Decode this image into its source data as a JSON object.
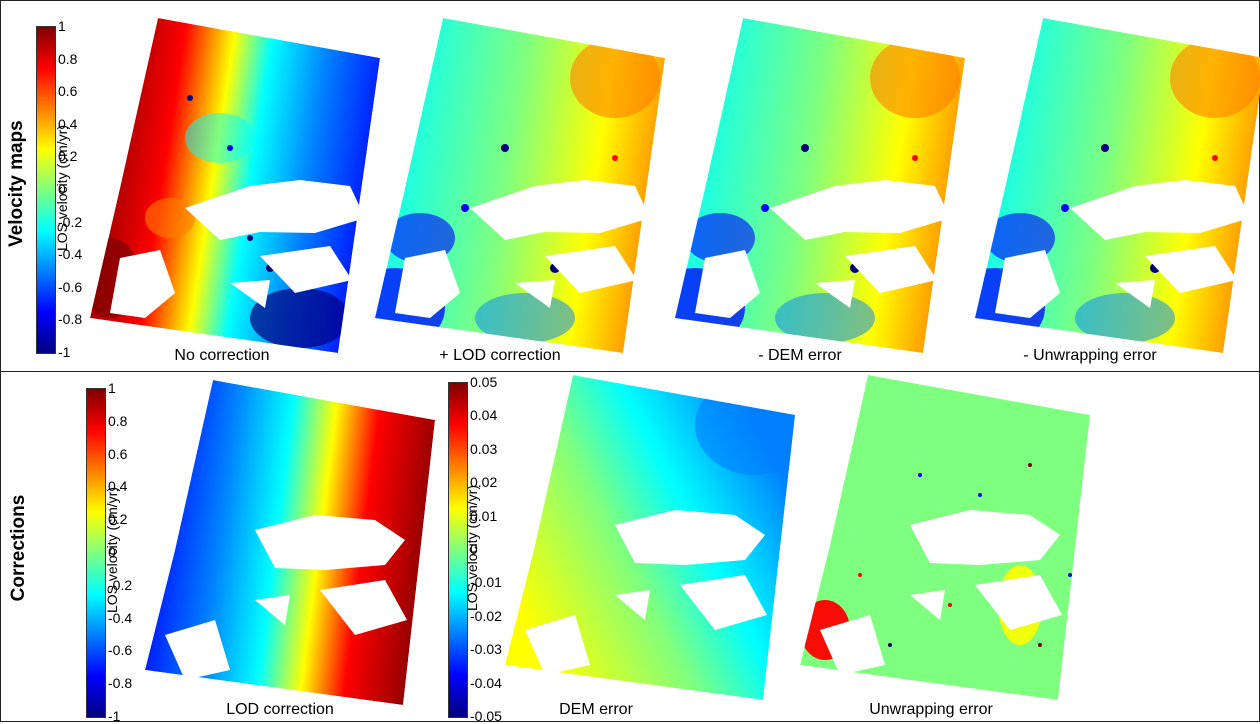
{
  "rows": {
    "velocity_title": "Velocity maps",
    "corrections_title": "Corrections"
  },
  "colorbars": {
    "velocity": {
      "label": "LOS velocity (cm/yr)",
      "ticks": [
        "1",
        "0.8",
        "0.6",
        "0.4",
        "0.2",
        "0",
        "-0.2",
        "-0.4",
        "-0.6",
        "-0.8",
        "-1"
      ]
    },
    "lod": {
      "label": "LOS velocity (cm/yr)",
      "ticks": [
        "1",
        "0.8",
        "0.6",
        "0.4",
        "0.2",
        "0",
        "-0.2",
        "-0.4",
        "-0.6",
        "-0.8",
        "-1"
      ]
    },
    "dem": {
      "label": "LOS velocity (cm/yr)",
      "ticks": [
        "0.05",
        "0.04",
        "0.03",
        "0.02",
        "0.01",
        "0",
        "-0.01",
        "-0.02",
        "-0.03",
        "-0.04",
        "-0.05"
      ]
    }
  },
  "panels": {
    "no_correction": "No correction",
    "lod_added": "+ LOD correction",
    "dem_removed": "- DEM error",
    "unwrap_removed": "- Unwrapping error",
    "lod_correction": "LOD correction",
    "dem_error": "DEM error",
    "unwrapping_error": "Unwrapping error"
  },
  "colors": {
    "jet": [
      "#00007f",
      "#0000ff",
      "#007fff",
      "#00ffff",
      "#7fff7f",
      "#ffff00",
      "#ff7f00",
      "#ff0000",
      "#7f0000"
    ],
    "frame": "#222222"
  }
}
